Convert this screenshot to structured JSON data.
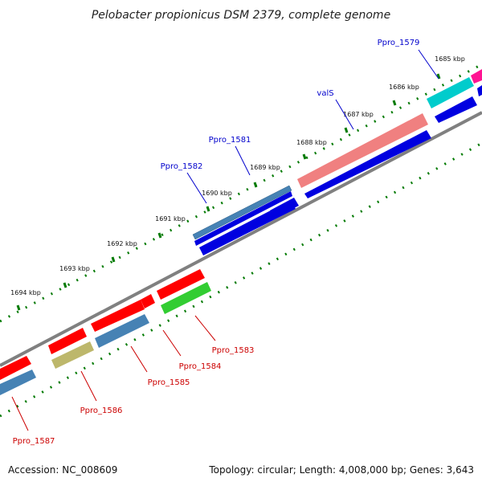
{
  "title": "Pelobacter propionicus DSM 2379, complete genome",
  "accession_text": "Accession: NC_008609",
  "topology_text": "Topology: circular; Length: 4,008,000 bp; Genes: 3,643",
  "colors": {
    "backbone": "#808080",
    "tick": "#007a00",
    "label_forward": "#0000cc",
    "label_reverse": "#cc0000"
  },
  "scale_ticks": [
    "1685 kbp",
    "1686 kbp",
    "1687 kbp",
    "1688 kbp",
    "1689 kbp",
    "1690 kbp",
    "1691 kbp",
    "1692 kbp",
    "1693 kbp",
    "1694 kbp"
  ],
  "gene_labels": [
    {
      "text": "Ppro_1579",
      "strand": "forward"
    },
    {
      "text": "valS",
      "strand": "forward"
    },
    {
      "text": "Ppro_1581",
      "strand": "forward"
    },
    {
      "text": "Ppro_1582",
      "strand": "forward"
    },
    {
      "text": "Ppro_1583",
      "strand": "reverse"
    },
    {
      "text": "Ppro_1584",
      "strand": "reverse"
    },
    {
      "text": "Ppro_1585",
      "strand": "reverse"
    },
    {
      "text": "Ppro_1586",
      "strand": "reverse"
    },
    {
      "text": "Ppro_1587",
      "strand": "reverse"
    }
  ]
}
